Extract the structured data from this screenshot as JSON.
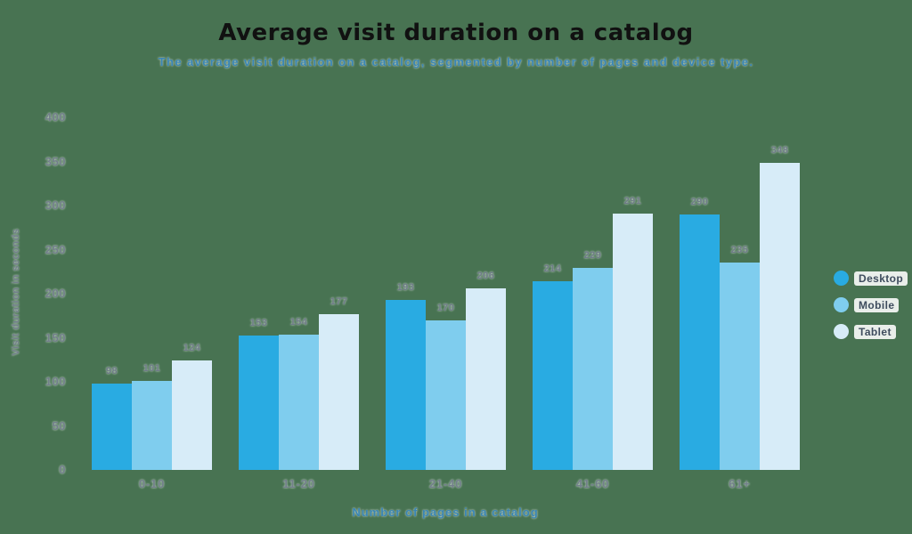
{
  "title": "Average visit duration on a catalog",
  "subtitle": "The average visit duration on a catalog, segmented by number of pages and device type.",
  "chart_data": {
    "type": "bar",
    "categories": [
      "0-10",
      "11-20",
      "21-40",
      "41-60",
      "61+"
    ],
    "series": [
      {
        "name": "Desktop",
        "color": "#29abe2",
        "values": [
          98,
          153,
          193,
          214,
          290
        ]
      },
      {
        "name": "Mobile",
        "color": "#7fcdee",
        "values": [
          101,
          154,
          170,
          229,
          235
        ]
      },
      {
        "name": "Tablet",
        "color": "#d7ecf8",
        "values": [
          124,
          177,
          206,
          291,
          348
        ]
      }
    ],
    "title": "Average visit duration on a catalog",
    "xlabel": "Number of pages in a catalog",
    "ylabel": "Visit duration in seconds",
    "ylim": [
      0,
      400
    ],
    "yticks": [
      0,
      50,
      100,
      150,
      200,
      250,
      300,
      350,
      400
    ],
    "grid": false,
    "legend_position": "right",
    "value_labels_shown": true
  },
  "colors": {
    "background": "#487352",
    "title_text": "#111111",
    "subtitle_text": "#3a86b4",
    "axis_text": "#73808b",
    "legend_text": "#3e4c5e"
  }
}
